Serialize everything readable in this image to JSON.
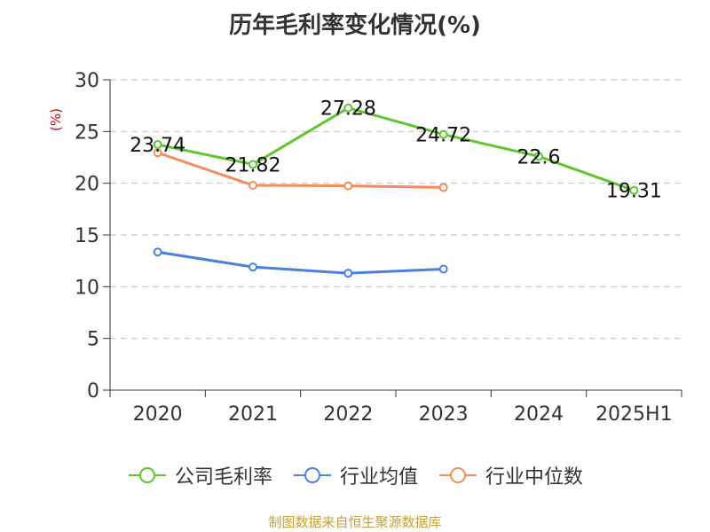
{
  "chart_data": {
    "type": "line",
    "title": "历年毛利率变化情况(%)",
    "ylabel": "(%)",
    "xlabel": "",
    "categories": [
      "2020",
      "2021",
      "2022",
      "2023",
      "2024",
      "2025H1"
    ],
    "ylim": [
      0,
      30
    ],
    "yticks": [
      0,
      5,
      10,
      15,
      20,
      25,
      30
    ],
    "grid": true,
    "legend_position": "bottom",
    "series": [
      {
        "name": "公司毛利率",
        "color": "#5ec72e",
        "values": [
          23.74,
          21.82,
          27.28,
          24.72,
          22.6,
          19.31
        ],
        "labels": [
          "23.74",
          "21.82",
          "27.28",
          "24.72",
          "22.6",
          "19.31"
        ]
      },
      {
        "name": "行业均值",
        "color": "#4a7fe0",
        "values": [
          13.35,
          11.9,
          11.3,
          11.7,
          null,
          null
        ]
      },
      {
        "name": "行业中位数",
        "color": "#f58c5a",
        "values": [
          22.95,
          19.8,
          19.75,
          19.6,
          null,
          null
        ]
      }
    ]
  },
  "source": "制图数据来自恒生聚源数据库"
}
